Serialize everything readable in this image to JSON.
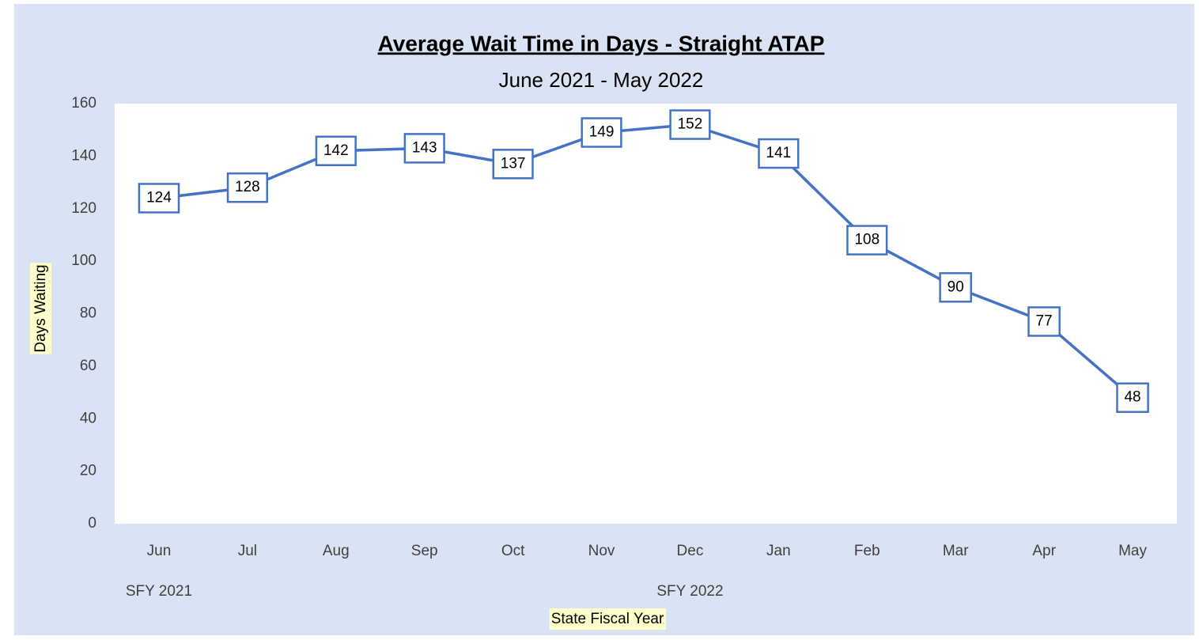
{
  "chart_data": {
    "type": "line",
    "title": "Average Wait Time in Days - Straight ATAP",
    "subtitle": "June 2021 - May 2022",
    "y_label": "Days Waiting",
    "x_label": "State Fiscal Year",
    "categories": [
      "Jun",
      "Jul",
      "Aug",
      "Sep",
      "Oct",
      "Nov",
      "Dec",
      "Jan",
      "Feb",
      "Mar",
      "Apr",
      "May"
    ],
    "groups": [
      "SFY 2021",
      null,
      null,
      null,
      null,
      null,
      "SFY 2022",
      null,
      null,
      null,
      null,
      null
    ],
    "values": [
      124,
      128,
      142,
      143,
      137,
      149,
      152,
      141,
      108,
      90,
      77,
      48
    ],
    "color": "#4472c4",
    "ylim": [
      0,
      160
    ],
    "yticks": [
      0,
      20,
      40,
      60,
      80,
      100,
      120,
      140,
      160
    ],
    "grid": false
  }
}
